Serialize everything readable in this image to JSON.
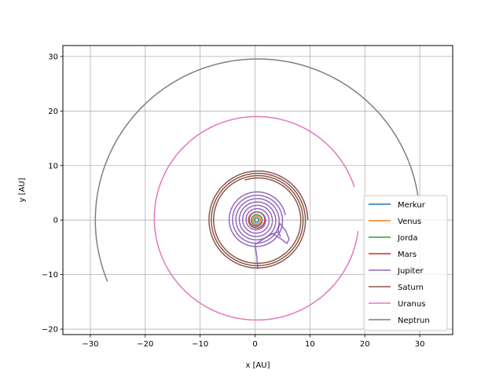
{
  "chart_data": {
    "type": "line",
    "title": "",
    "xlabel": "x [AU]",
    "ylabel": "y [AU]",
    "xlim": [
      -35,
      36
    ],
    "ylim": [
      -21,
      32
    ],
    "xticks": [
      -30,
      -20,
      -10,
      0,
      10,
      20,
      30
    ],
    "yticks": [
      -20,
      -10,
      0,
      10,
      20,
      30
    ],
    "xtick_labels": [
      "−30",
      "−20",
      "−10",
      "0",
      "10",
      "20",
      "30"
    ],
    "ytick_labels": [
      "−20",
      "−10",
      "0",
      "10",
      "20",
      "30"
    ],
    "grid": true,
    "legend_position": "lower right",
    "series": [
      {
        "name": "Merkur",
        "color": "#1f77b4",
        "kind": "spiral",
        "center": [
          0.3,
          0.0
        ],
        "r_start": 0.4,
        "r_end": 0.38,
        "theta_start_deg": 0,
        "turns": 1.0
      },
      {
        "name": "Venus",
        "color": "#ff7f0e",
        "kind": "spiral",
        "center": [
          0.3,
          0.0
        ],
        "r_start": 0.72,
        "r_end": 0.7,
        "theta_start_deg": 0,
        "turns": 1.0
      },
      {
        "name": "Jorda",
        "color": "#2ca02c",
        "kind": "spiral",
        "center": [
          0.3,
          0.0
        ],
        "r_start": 1.0,
        "r_end": 0.95,
        "theta_start_deg": 0,
        "turns": 1.0
      },
      {
        "name": "Mars",
        "color": "#d62728",
        "kind": "spiral",
        "center": [
          0.3,
          0.0
        ],
        "r_start": 1.5,
        "r_end": 1.45,
        "theta_start_deg": 0,
        "turns": 1.0
      },
      {
        "name": "Jupiter",
        "color": "#9467bd",
        "kind": "points",
        "points": [
          [
            0.5,
            -9.0
          ],
          [
            0.3,
            -6.5
          ],
          [
            0.0,
            -4.5
          ],
          [
            1.5,
            -3.5
          ],
          [
            3.2,
            -2.5
          ],
          [
            4.8,
            -3.5
          ],
          [
            5.8,
            -4.3
          ],
          [
            6.2,
            -3.5
          ],
          [
            5.6,
            -2.0
          ],
          [
            4.5,
            -0.6
          ],
          [
            4.2,
            -1.8
          ],
          [
            4.6,
            -3.0
          ],
          [
            4.3,
            -2.2
          ],
          [
            3.0,
            -2.6
          ]
        ]
      },
      {
        "name": "Jupiter_spiral",
        "legend_hidden": true,
        "color": "#9467bd",
        "kind": "spiral",
        "center": [
          0.3,
          0.0
        ],
        "r_start": 5.3,
        "r_end": 1.0,
        "theta_start_deg": 10,
        "turns": 7.0
      },
      {
        "name": "Saturn",
        "color": "#8c564b",
        "kind": "spiral",
        "center": [
          0.5,
          0.0
        ],
        "r_start": 9.1,
        "r_end": 7.7,
        "theta_start_deg": 0,
        "turns": 3.3
      },
      {
        "name": "Uranus",
        "color": "#e377c2",
        "kind": "spiral",
        "center": [
          0.3,
          0.3
        ],
        "r_start": 18.7,
        "r_end": 18.6,
        "theta_start_deg": 18,
        "turns": 0.93
      },
      {
        "name": "Neptrun",
        "color": "#7f7f7f",
        "kind": "spiral",
        "center": [
          0.5,
          0.0
        ],
        "r_start": 29.5,
        "r_end": 29.6,
        "theta_start_deg": 8,
        "turns": 0.54
      }
    ]
  }
}
